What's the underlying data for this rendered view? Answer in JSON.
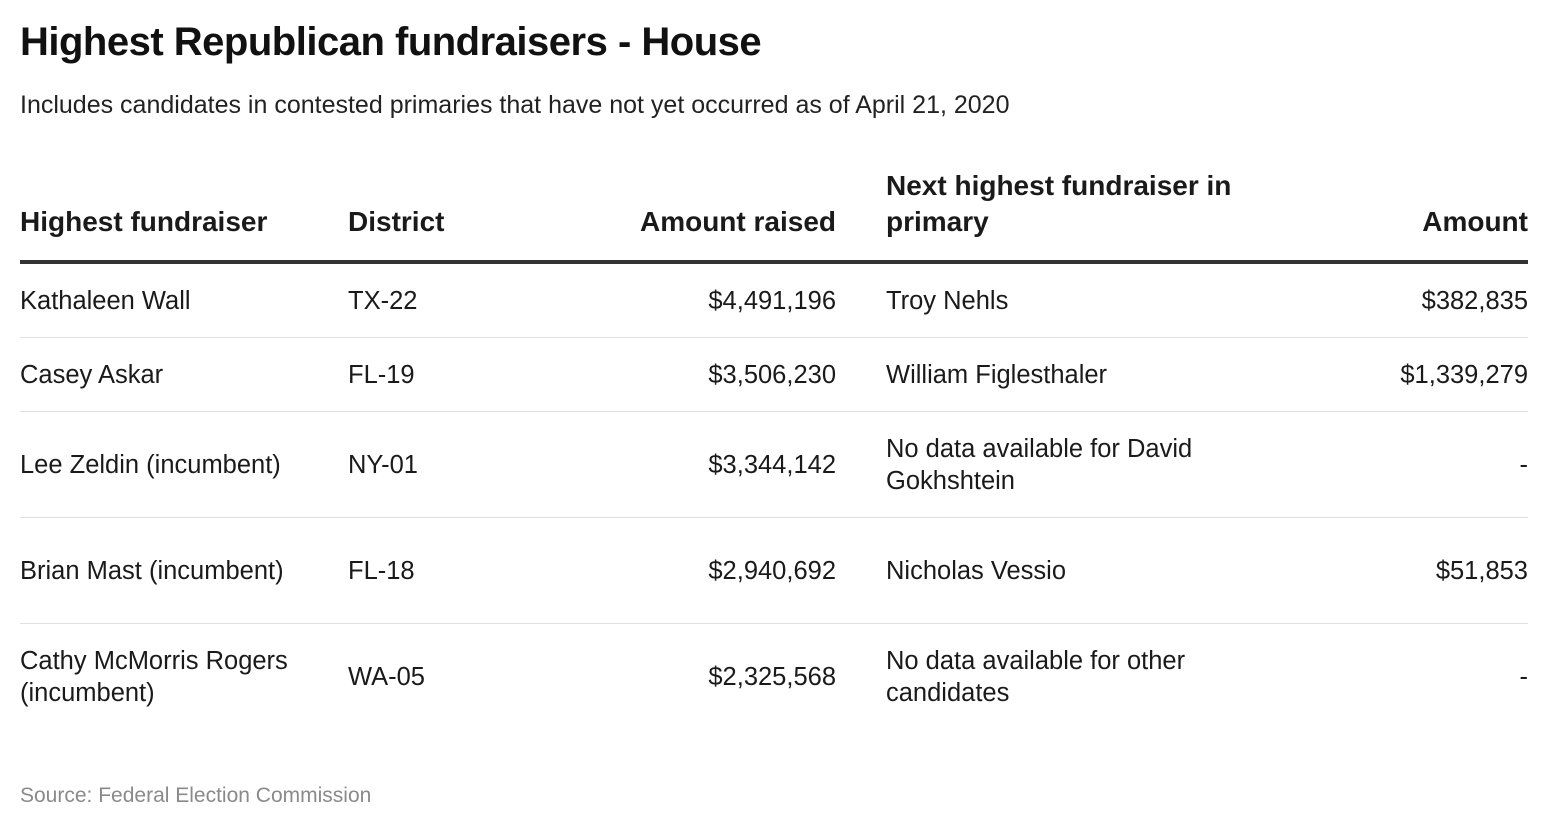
{
  "title": "Highest Republican fundraisers - House",
  "subtitle": "Includes candidates in contested primaries that have not yet occurred as of April 21, 2020",
  "source": "Source: Federal Election Commission",
  "chart_data": {
    "type": "table",
    "columns": [
      "Highest fundraiser",
      "District",
      "Amount raised",
      "Next highest fundraiser in primary",
      "Amount"
    ],
    "rows": [
      {
        "fundraiser": "Kathaleen Wall",
        "district": "TX-22",
        "amount_raised": "$4,491,196",
        "next_fundraiser": "Troy Nehls",
        "amount": "$382,835"
      },
      {
        "fundraiser": "Casey Askar",
        "district": "FL-19",
        "amount_raised": "$3,506,230",
        "next_fundraiser": "William Figlesthaler",
        "amount": "$1,339,279"
      },
      {
        "fundraiser": "Lee Zeldin (incumbent)",
        "district": "NY-01",
        "amount_raised": "$3,344,142",
        "next_fundraiser": "No data available for David Gokhshtein",
        "amount": "-"
      },
      {
        "fundraiser": "Brian Mast (incumbent)",
        "district": "FL-18",
        "amount_raised": "$2,940,692",
        "next_fundraiser": "Nicholas Vessio",
        "amount": "$51,853"
      },
      {
        "fundraiser": "Cathy McMorris Rogers (incumbent)",
        "district": "WA-05",
        "amount_raised": "$2,325,568",
        "next_fundraiser": "No data available for other candidates",
        "amount": "-"
      }
    ]
  }
}
